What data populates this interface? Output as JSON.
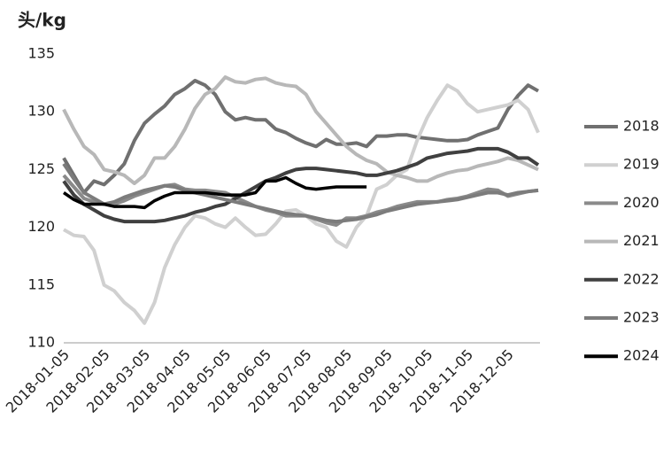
{
  "chart_data": {
    "type": "line",
    "y_label": "头/kg",
    "categories": [
      "2018-01-05",
      null,
      null,
      null,
      "2018-02-05",
      null,
      null,
      null,
      "2018-03-05",
      null,
      null,
      null,
      "2018-04-05",
      null,
      null,
      null,
      "2018-05-05",
      null,
      null,
      null,
      "2018-06-05",
      null,
      null,
      null,
      "2018-07-05",
      null,
      null,
      null,
      "2018-08-05",
      null,
      null,
      null,
      "2018-09-05",
      null,
      null,
      null,
      "2018-10-05",
      null,
      null,
      null,
      "2018-11-05",
      null,
      null,
      null,
      "2018-12-05",
      null,
      null,
      null
    ],
    "ylim": [
      110,
      135
    ],
    "yticks": [
      110,
      115,
      120,
      125,
      130,
      135
    ],
    "grid": false,
    "legend": "right",
    "series": [
      {
        "name": "2018",
        "color": "#707070",
        "values": [
          126,
          124.5,
          123,
          124,
          123.7,
          124.5,
          125.5,
          127.5,
          129,
          129.8,
          130.5,
          131.5,
          132,
          132.7,
          132.3,
          131.5,
          130,
          129.3,
          129.5,
          129.3,
          129.3,
          128.5,
          128.2,
          127.7,
          127.3,
          127,
          127.6,
          127.2,
          127.2,
          127.3,
          127,
          127.9,
          127.9,
          128,
          128,
          127.8,
          127.7,
          127.6,
          127.5,
          127.5,
          127.6,
          128,
          128.3,
          128.6,
          130.2,
          131.4,
          132.3,
          131.8
        ]
      },
      {
        "name": "2019",
        "color": "#d0d0d0",
        "values": [
          119.8,
          119.3,
          119.2,
          118,
          115,
          114.5,
          113.5,
          112.8,
          111.7,
          113.5,
          116.5,
          118.5,
          120,
          121,
          120.8,
          120.3,
          120,
          120.8,
          120,
          119.3,
          119.4,
          120.3,
          121.4,
          121.5,
          121,
          120.3,
          120,
          118.8,
          118.3,
          120,
          121,
          123.3,
          123.7,
          124.5,
          125,
          127.5,
          129.5,
          131,
          132.3,
          131.8,
          130.7,
          130,
          130.2,
          130.4,
          130.6,
          131,
          130.2,
          128.2
        ]
      },
      {
        "name": "2020",
        "color": "#8a8a8a",
        "values": [
          124.5,
          123.5,
          122.5,
          122.2,
          122,
          122,
          122.3,
          122.7,
          123,
          123.3,
          123.6,
          123.7,
          123.3,
          123.2,
          123.2,
          123.1,
          123,
          122.6,
          122.2,
          121.8,
          121.5,
          121.3,
          121,
          121,
          121,
          120.7,
          120.4,
          120.2,
          120.8,
          120.8,
          121,
          121.3,
          121.5,
          121.8,
          122,
          122.2,
          122.2,
          122.2,
          122.4,
          122.5,
          122.7,
          123,
          123.3,
          123.2,
          122.7,
          122.9,
          123.1,
          123.2
        ]
      },
      {
        "name": "2021",
        "color": "#b8b8b8",
        "values": [
          130.2,
          128.5,
          127,
          126.3,
          125,
          124.8,
          124.5,
          123.8,
          124.5,
          126,
          126,
          127,
          128.5,
          130.3,
          131.5,
          132,
          133,
          132.6,
          132.5,
          132.8,
          132.9,
          132.5,
          132.3,
          132.2,
          131.5,
          130,
          129,
          128,
          127,
          126.3,
          125.8,
          125.5,
          124.8,
          124.5,
          124.3,
          124,
          124,
          124.4,
          124.7,
          124.9,
          125,
          125.3,
          125.5,
          125.7,
          126,
          125.8,
          125.4,
          125
        ]
      },
      {
        "name": "2022",
        "color": "#404040",
        "values": [
          124,
          122.8,
          122,
          121.5,
          121,
          120.7,
          120.5,
          120.5,
          120.5,
          120.5,
          120.6,
          120.8,
          121,
          121.3,
          121.5,
          121.8,
          122,
          122.5,
          123,
          123.5,
          124,
          124.3,
          124.7,
          125,
          125.1,
          125.1,
          125,
          124.9,
          124.8,
          124.7,
          124.5,
          124.5,
          124.7,
          124.9,
          125.2,
          125.5,
          126,
          126.2,
          126.4,
          126.5,
          126.6,
          126.8,
          126.8,
          126.8,
          126.5,
          126,
          126,
          125.4
        ]
      },
      {
        "name": "2023",
        "color": "#7c7c7c",
        "values": [
          125.5,
          124.2,
          123,
          122.5,
          122,
          122.2,
          122.6,
          122.9,
          123.2,
          123.4,
          123.6,
          123.5,
          123.2,
          123,
          122.8,
          122.6,
          122.4,
          122.2,
          122,
          121.8,
          121.6,
          121.4,
          121.2,
          121.1,
          121,
          120.8,
          120.6,
          120.5,
          120.6,
          120.7,
          120.9,
          121.1,
          121.4,
          121.6,
          121.8,
          122,
          122.1,
          122.2,
          122.3,
          122.4,
          122.6,
          122.8,
          123,
          123,
          122.8,
          123,
          123.1,
          123.2
        ]
      },
      {
        "name": "2024",
        "color": "#000000",
        "values": [
          123,
          122.4,
          122,
          122,
          122,
          121.8,
          121.8,
          121.8,
          121.7,
          122.3,
          122.7,
          123,
          123,
          123,
          123,
          122.9,
          122.8,
          122.8,
          122.8,
          123,
          124,
          124,
          124.3,
          123.8,
          123.4,
          123.3,
          123.4,
          123.5,
          123.5,
          123.5,
          123.5,
          null,
          null,
          null,
          null,
          null,
          null,
          null,
          null,
          null,
          null,
          null,
          null,
          null,
          null,
          null,
          null,
          null
        ]
      }
    ]
  }
}
